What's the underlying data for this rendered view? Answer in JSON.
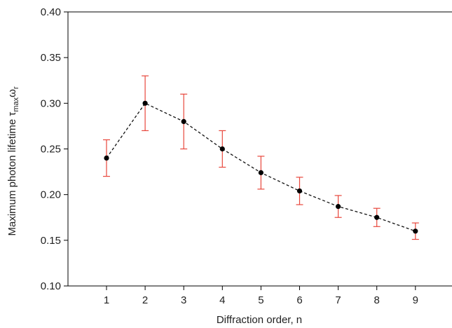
{
  "chart_data": {
    "type": "scatter",
    "xlabel": "Diffraction order, n",
    "ylabel": "Maximum photon lifetime τ",
    "ylabel_sub": "max",
    "ylabel_tail": "ω",
    "ylabel_sub2": "r",
    "xlim": [
      0,
      10
    ],
    "ylim": [
      0.1,
      0.4
    ],
    "xticks": [
      1,
      2,
      3,
      4,
      5,
      6,
      7,
      8,
      9
    ],
    "yticks": [
      "0.10",
      "0.15",
      "0.20",
      "0.25",
      "0.30",
      "0.35",
      "0.40"
    ],
    "grid": false,
    "series": [
      {
        "x": [
          1,
          2,
          3,
          4,
          5,
          6,
          7,
          8,
          9
        ],
        "y": [
          0.24,
          0.3,
          0.28,
          0.25,
          0.224,
          0.204,
          0.187,
          0.175,
          0.16
        ],
        "y_err_low": [
          0.22,
          0.27,
          0.25,
          0.23,
          0.206,
          0.189,
          0.175,
          0.165,
          0.151
        ],
        "y_err_high": [
          0.26,
          0.33,
          0.31,
          0.27,
          0.242,
          0.219,
          0.199,
          0.185,
          0.169
        ],
        "marker_color": "#000000",
        "errorbar_color": "#e8473c",
        "line_style": "dashed"
      }
    ]
  }
}
